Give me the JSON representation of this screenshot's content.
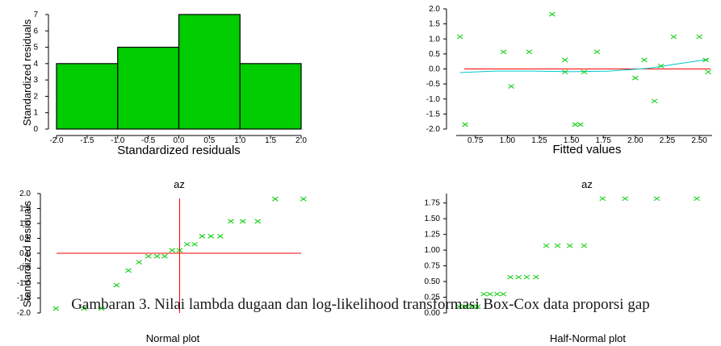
{
  "caption": "Gambaran 3. Nilai lambda dugaan dan log-likelihood transformasi Box-Cox data proporsi gap",
  "colors": {
    "bar_fill": "#00cc00",
    "marker": "#00cc00",
    "refline": "#ff0000",
    "smooth": "#00c8c8"
  },
  "chart_data": [
    {
      "type": "bar",
      "title": "",
      "xlabel": "Standardized residuals",
      "ylabel": "Standardized residuals",
      "x_ticks": [
        "-2.0",
        "-1.5",
        "-1.0",
        "-0.5",
        "0.0",
        "0.5",
        "1.0",
        "1.5",
        "2.0"
      ],
      "y_ticks": [
        "0",
        "1",
        "2",
        "3",
        "4",
        "5",
        "6",
        "7"
      ],
      "bins": [
        [
          -2.0,
          -1.0
        ],
        [
          -1.0,
          0.0
        ],
        [
          0.0,
          1.0
        ],
        [
          1.0,
          2.0
        ]
      ],
      "values": [
        4,
        5,
        7,
        4
      ],
      "xlim": [
        -2.0,
        2.0
      ],
      "ylim": [
        0,
        7
      ]
    },
    {
      "type": "scatter",
      "title": "",
      "xlabel": "Fitted values",
      "ylabel": "",
      "x_ticks": [
        "0.75",
        "1.00",
        "1.25",
        "1.50",
        "1.75",
        "2.00",
        "2.25",
        "2.50"
      ],
      "y_ticks": [
        "2.0",
        "1.5",
        "1.0",
        "0.5",
        "0.0",
        "-0.5",
        "-1.0",
        "-1.5",
        "-2.0"
      ],
      "x": [
        0.63,
        0.67,
        0.97,
        1.03,
        1.17,
        1.35,
        1.45,
        1.45,
        1.53,
        1.57,
        1.6,
        1.7,
        2.0,
        2.07,
        2.15,
        2.2,
        2.3,
        2.5,
        2.55,
        2.57
      ],
      "y": [
        1.07,
        -1.85,
        0.57,
        -0.58,
        0.57,
        1.82,
        0.3,
        -0.1,
        -1.85,
        -1.85,
        -0.1,
        0.57,
        -0.3,
        0.3,
        -1.07,
        0.1,
        1.07,
        1.07,
        0.3,
        -0.1
      ],
      "reference_line_y": 0,
      "smooth_x": [
        0.63,
        0.9,
        1.2,
        1.5,
        1.8,
        2.1,
        2.3,
        2.57
      ],
      "smooth_y": [
        -0.12,
        -0.07,
        -0.07,
        -0.09,
        -0.07,
        0.02,
        0.15,
        0.32
      ],
      "xlim": [
        0.6,
        2.6
      ],
      "ylim": [
        -2.0,
        2.0
      ]
    },
    {
      "type": "scatter",
      "title": "az",
      "xlabel": "Normal plot",
      "ylabel": "Standardized residuals",
      "y_ticks": [
        "2.0",
        "1.5",
        "1.0",
        "0.5",
        "0.0",
        "-0.5",
        "-1.0",
        "-1.5",
        "-2.0"
      ],
      "x": [
        -1.98,
        -1.53,
        -1.25,
        -1.01,
        -0.82,
        -0.65,
        -0.5,
        -0.36,
        -0.24,
        -0.12,
        0.0,
        0.12,
        0.24,
        0.36,
        0.5,
        0.65,
        0.82,
        1.01,
        1.25,
        1.53,
        1.98
      ],
      "y": [
        -1.85,
        -1.85,
        -1.85,
        -1.07,
        -0.58,
        -0.3,
        -0.1,
        -0.1,
        -0.1,
        0.1,
        0.1,
        0.3,
        0.3,
        0.57,
        0.57,
        0.57,
        1.07,
        1.07,
        1.07,
        1.82,
        1.82
      ],
      "reference_line_y": 0,
      "reference_line_x": 0,
      "xlim": [
        -2.1,
        2.1
      ],
      "ylim": [
        -2.0,
        2.0
      ]
    },
    {
      "type": "scatter",
      "title": "az",
      "xlabel": "Half-Normal plot",
      "ylabel": "",
      "y_ticks": [
        "1.75",
        "1.50",
        "1.25",
        "1.00",
        "0.75",
        "0.50",
        "0.25",
        "0.00"
      ],
      "x": [
        0.03,
        0.09,
        0.15,
        0.21,
        0.27,
        0.33,
        0.4,
        0.46,
        0.53,
        0.61,
        0.69,
        0.78,
        0.88,
        0.99,
        1.11,
        1.25,
        1.43,
        1.65,
        1.96,
        2.35
      ],
      "y": [
        0.1,
        0.1,
        0.1,
        0.1,
        0.3,
        0.3,
        0.3,
        0.3,
        0.57,
        0.57,
        0.57,
        0.57,
        1.07,
        1.07,
        1.07,
        1.07,
        1.82,
        1.82,
        1.82,
        1.82
      ],
      "xlim": [
        0,
        2.5
      ],
      "ylim": [
        0,
        1.9
      ]
    }
  ]
}
